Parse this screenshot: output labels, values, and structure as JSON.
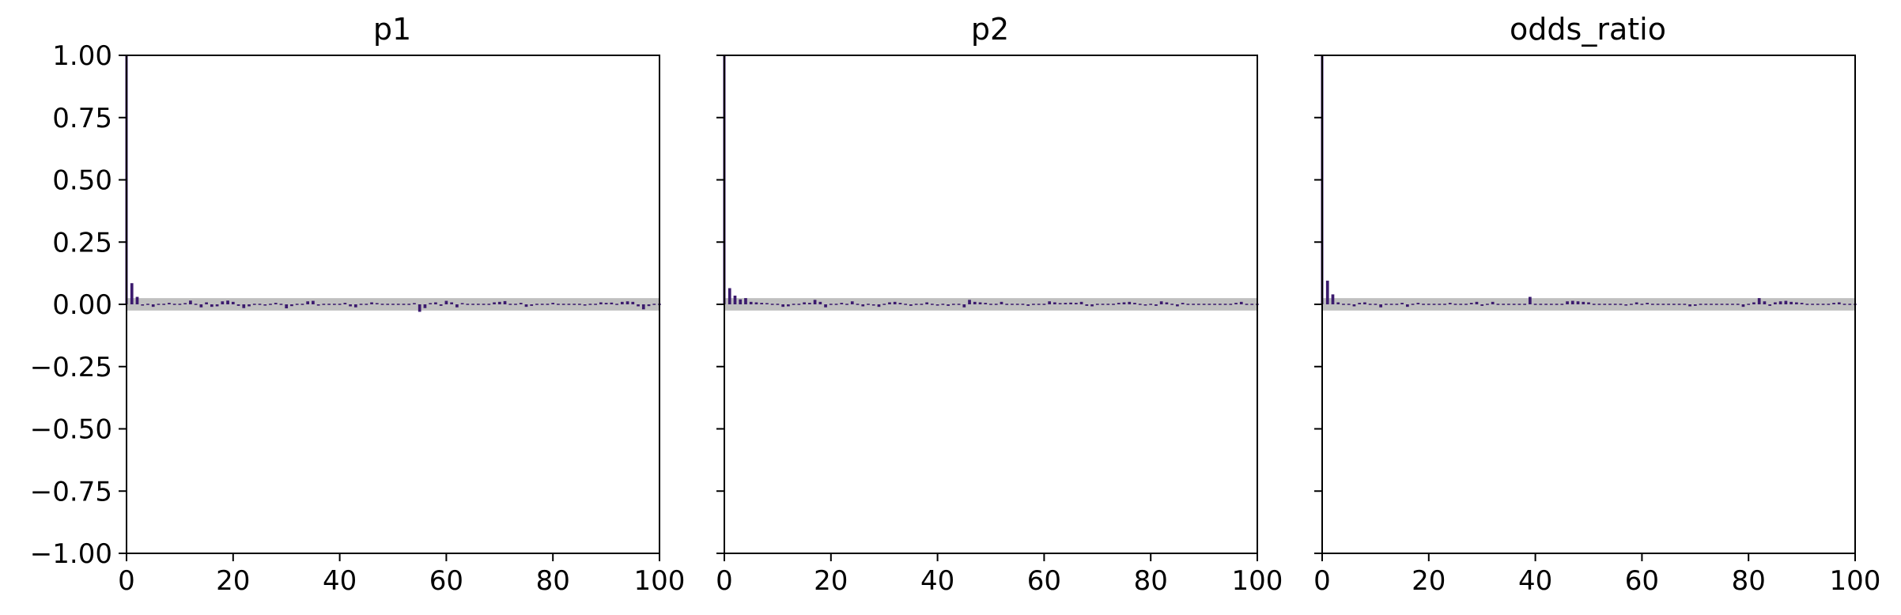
{
  "chart_data": [
    {
      "type": "bar",
      "title": "p1",
      "xlabel": "",
      "ylabel": "",
      "xlim": [
        0,
        100
      ],
      "ylim": [
        -1.0,
        1.0
      ],
      "x_ticks": [
        "0",
        "20",
        "40",
        "60",
        "80",
        "100"
      ],
      "y_ticks": [
        "−1.00",
        "−0.75",
        "−0.50",
        "−0.25",
        "0.00",
        "0.25",
        "0.50",
        "0.75",
        "1.00"
      ],
      "y_tick_labels_shown": true,
      "grid": false,
      "bar_color": "#3b1a6e",
      "band_color": "#c0c0c0",
      "confidence_band": [
        -0.025,
        0.025
      ],
      "values": [
        1.0,
        0.085,
        0.03,
        -0.005,
        -0.002,
        -0.01,
        0.004,
        0.003,
        0.006,
        0.004,
        0.002,
        0.005,
        0.015,
        0.002,
        -0.012,
        0.008,
        -0.01,
        -0.008,
        0.012,
        0.015,
        0.01,
        -0.006,
        -0.015,
        -0.008,
        0.003,
        -0.004,
        -0.005,
        0.003,
        0.006,
        -0.003,
        -0.016,
        -0.007,
        -0.004,
        0.004,
        0.012,
        0.014,
        -0.005,
        0.003,
        0.004,
        -0.002,
        -0.001,
        0.006,
        -0.008,
        -0.012,
        0.004,
        -0.003,
        0.008,
        0.005,
        -0.004,
        0.003,
        0.001,
        0.002,
        -0.002,
        0.002,
        0.005,
        -0.03,
        -0.015,
        0.005,
        0.008,
        -0.006,
        0.014,
        0.008,
        -0.012,
        0.005,
        -0.004,
        0.002,
        0.004,
        -0.002,
        0.003,
        0.008,
        0.01,
        0.013,
        0.002,
        -0.004,
        0.006,
        -0.01,
        -0.006,
        0.004,
        -0.002,
        0.003,
        0.006,
        -0.004,
        0.003,
        0.004,
        -0.002,
        0.002,
        -0.005,
        0.003,
        -0.001,
        0.008,
        0.006,
        0.007,
        0.004,
        0.01,
        0.012,
        0.01,
        -0.008,
        -0.02,
        -0.007,
        0.004,
        -0.003
      ]
    },
    {
      "type": "bar",
      "title": "p2",
      "xlabel": "",
      "ylabel": "",
      "xlim": [
        0,
        100
      ],
      "ylim": [
        -1.0,
        1.0
      ],
      "x_ticks": [
        "0",
        "20",
        "40",
        "60",
        "80",
        "100"
      ],
      "y_ticks": [
        "−1.00",
        "−0.75",
        "−0.50",
        "−0.25",
        "0.00",
        "0.25",
        "0.50",
        "0.75",
        "1.00"
      ],
      "y_tick_labels_shown": false,
      "grid": false,
      "bar_color": "#3b1a6e",
      "band_color": "#c0c0c0",
      "confidence_band": [
        -0.025,
        0.025
      ],
      "values": [
        1.0,
        0.065,
        0.035,
        0.02,
        0.025,
        0.01,
        0.008,
        0.006,
        0.005,
        -0.004,
        -0.003,
        -0.01,
        -0.008,
        0.004,
        0.003,
        0.008,
        0.006,
        0.018,
        0.01,
        -0.012,
        0.004,
        -0.002,
        0.006,
        0.004,
        0.012,
        -0.004,
        -0.008,
        0.003,
        -0.005,
        -0.01,
        0.004,
        0.008,
        0.01,
        0.006,
        -0.004,
        -0.006,
        0.003,
        0.004,
        0.008,
        -0.003,
        -0.005,
        0.002,
        -0.006,
        -0.004,
        -0.003,
        -0.012,
        0.018,
        0.01,
        0.008,
        0.006,
        -0.004,
        0.002,
        0.01,
        0.004,
        0.003,
        -0.002,
        -0.004,
        -0.006,
        0.004,
        0.002,
        -0.003,
        0.012,
        0.008,
        0.005,
        0.006,
        0.007,
        0.006,
        0.01,
        -0.006,
        -0.008,
        -0.004,
        0.003,
        0.004,
        -0.003,
        0.006,
        0.008,
        0.01,
        0.006,
        0.004,
        -0.005,
        -0.004,
        -0.006,
        0.012,
        0.008,
        -0.004,
        -0.008,
        0.006,
        0.004,
        0.003,
        -0.002,
        0.002,
        -0.004,
        -0.003,
        -0.002,
        0.003,
        0.004,
        0.006,
        0.01,
        -0.004,
        0.002,
        0.003
      ]
    },
    {
      "type": "bar",
      "title": "odds_ratio",
      "xlabel": "",
      "ylabel": "",
      "xlim": [
        0,
        100
      ],
      "ylim": [
        -1.0,
        1.0
      ],
      "x_ticks": [
        "0",
        "20",
        "40",
        "60",
        "80",
        "100"
      ],
      "y_ticks": [
        "−1.00",
        "−0.75",
        "−0.50",
        "−0.25",
        "0.00",
        "0.25",
        "0.50",
        "0.75",
        "1.00"
      ],
      "y_tick_labels_shown": false,
      "grid": false,
      "bar_color": "#3b1a6e",
      "band_color": "#c0c0c0",
      "confidence_band": [
        -0.025,
        0.025
      ],
      "values": [
        1.0,
        0.095,
        0.04,
        0.008,
        -0.004,
        0.002,
        -0.008,
        0.006,
        0.008,
        0.003,
        -0.004,
        -0.012,
        0.004,
        0.003,
        0.002,
        0.006,
        -0.01,
        0.004,
        0.006,
        0.003,
        -0.004,
        0.002,
        -0.002,
        0.004,
        0.006,
        0.004,
        -0.004,
        0.002,
        0.006,
        0.01,
        -0.006,
        0.004,
        0.01,
        -0.004,
        0.003,
        0.004,
        0.002,
        -0.002,
        0.003,
        0.03,
        -0.004,
        0.002,
        -0.003,
        0.004,
        0.002,
        -0.002,
        0.012,
        0.014,
        0.012,
        0.01,
        0.008,
        -0.004,
        -0.002,
        0.004,
        0.003,
        -0.003,
        0.004,
        -0.005,
        0.002,
        0.008,
        0.004,
        0.006,
        0.003,
        -0.004,
        0.002,
        -0.002,
        0.003,
        0.004,
        0.002,
        -0.008,
        -0.006,
        -0.004,
        0.004,
        0.003,
        -0.003,
        0.002,
        -0.002,
        0.004,
        0.003,
        -0.01,
        0.004,
        0.008,
        0.025,
        0.012,
        -0.006,
        0.008,
        0.012,
        0.014,
        0.01,
        0.008,
        0.006,
        0.004,
        -0.002,
        0.003,
        0.004,
        0.002,
        0.006,
        0.008,
        -0.004,
        0.002,
        -0.002
      ]
    }
  ]
}
